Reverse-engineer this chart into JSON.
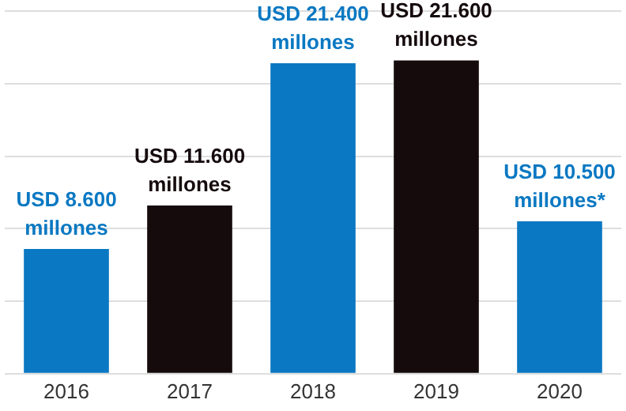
{
  "chart_data": {
    "type": "bar",
    "categories": [
      "2016",
      "2017",
      "2018",
      "2019",
      "2020"
    ],
    "values": [
      8600,
      11600,
      21400,
      21600,
      10500
    ],
    "colors": [
      "#0a78c2",
      "#150b0d",
      "#0a78c2",
      "#150b0d",
      "#0a78c2"
    ],
    "value_labels": [
      "USD 8.600 millones",
      "USD 11.600 millones",
      "USD 21.400 millones",
      "USD 21.600 millones",
      "USD 10.500 millones*"
    ],
    "ylim": [
      0,
      25000
    ],
    "yticks": [
      {
        "value": 0,
        "label": null
      },
      {
        "value": 5000,
        "label": null
      },
      {
        "value": 10000,
        "label": null
      },
      {
        "value": 15000,
        "label": null
      },
      {
        "value": 20000,
        "label": null
      },
      {
        "value": 25000,
        "label": null
      }
    ],
    "grid": "y",
    "legend": false,
    "tick_labels": "x"
  }
}
